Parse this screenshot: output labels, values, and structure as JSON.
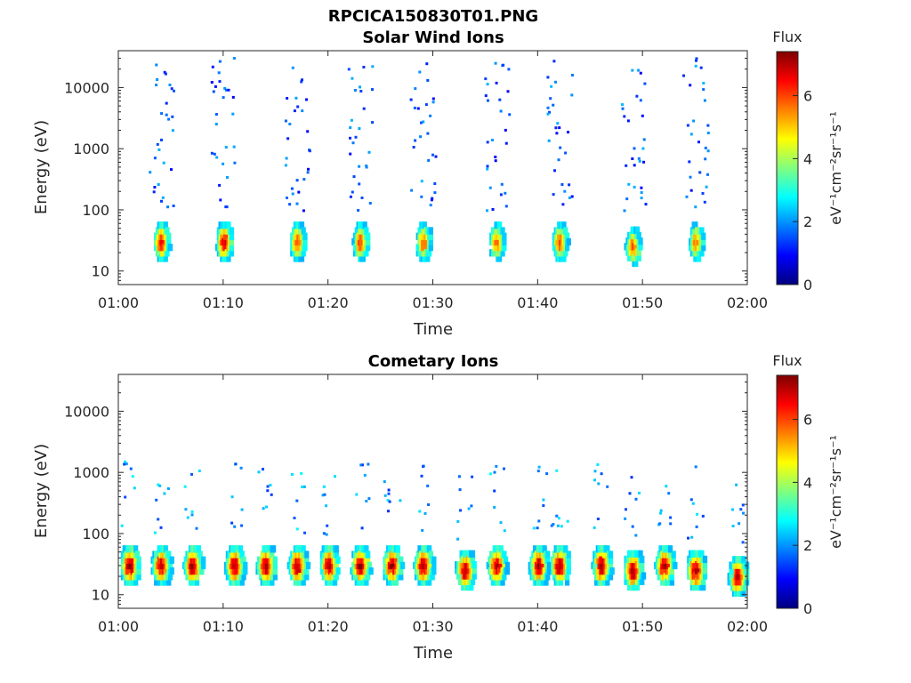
{
  "figure_title": "RPCICA150830T01.PNG",
  "colorbar": {
    "title": "Flux",
    "ticks": [
      "0",
      "2",
      "4",
      "6"
    ],
    "units_label": "eV⁻¹cm⁻²sr⁻¹s⁻¹",
    "range": [
      0,
      7.4
    ],
    "colormap": "jet"
  },
  "chart_data": [
    {
      "type": "heatmap",
      "title": "Solar Wind Ions",
      "xlabel": "Time",
      "ylabel": "Energy (eV)",
      "x_ticks": [
        "01:00",
        "01:10",
        "01:20",
        "01:30",
        "01:40",
        "01:50",
        "02:00"
      ],
      "y_ticks": [
        "10",
        "100",
        "1000",
        "10000"
      ],
      "xlim": [
        "01:00",
        "02:00"
      ],
      "ylim": [
        6,
        40000
      ],
      "y_scale": "log",
      "z_label": "Flux",
      "z_range": [
        0,
        7.4
      ],
      "main_bursts": [
        {
          "time": "01:04",
          "peak_energy_eV": 30,
          "peak_flux": 6.5
        },
        {
          "time": "01:10",
          "peak_energy_eV": 30,
          "peak_flux": 6.8
        },
        {
          "time": "01:17",
          "peak_energy_eV": 30,
          "peak_flux": 6.0
        },
        {
          "time": "01:23",
          "peak_energy_eV": 30,
          "peak_flux": 6.0
        },
        {
          "time": "01:29",
          "peak_energy_eV": 30,
          "peak_flux": 5.8
        },
        {
          "time": "01:36",
          "peak_energy_eV": 30,
          "peak_flux": 5.8
        },
        {
          "time": "01:42",
          "peak_energy_eV": 30,
          "peak_flux": 6.0
        },
        {
          "time": "01:49",
          "peak_energy_eV": 25,
          "peak_flux": 5.8
        },
        {
          "time": "01:55",
          "peak_energy_eV": 30,
          "peak_flux": 5.5
        }
      ]
    },
    {
      "type": "heatmap",
      "title": "Cometary Ions",
      "xlabel": "Time",
      "ylabel": "Energy (eV)",
      "x_ticks": [
        "01:00",
        "01:10",
        "01:20",
        "01:30",
        "01:40",
        "01:50",
        "02:00"
      ],
      "y_ticks": [
        "10",
        "100",
        "1000",
        "10000"
      ],
      "xlim": [
        "01:00",
        "02:00"
      ],
      "ylim": [
        6,
        40000
      ],
      "y_scale": "log",
      "z_label": "Flux",
      "z_range": [
        0,
        7.4
      ],
      "main_bursts": [
        {
          "time": "01:01",
          "peak_energy_eV": 30,
          "peak_flux": 7.2
        },
        {
          "time": "01:04",
          "peak_energy_eV": 30,
          "peak_flux": 7.0
        },
        {
          "time": "01:07",
          "peak_energy_eV": 30,
          "peak_flux": 7.2
        },
        {
          "time": "01:11",
          "peak_energy_eV": 30,
          "peak_flux": 7.2
        },
        {
          "time": "01:14",
          "peak_energy_eV": 30,
          "peak_flux": 7.2
        },
        {
          "time": "01:17",
          "peak_energy_eV": 30,
          "peak_flux": 7.2
        },
        {
          "time": "01:20",
          "peak_energy_eV": 30,
          "peak_flux": 7.2
        },
        {
          "time": "01:23",
          "peak_energy_eV": 30,
          "peak_flux": 7.2
        },
        {
          "time": "01:26",
          "peak_energy_eV": 30,
          "peak_flux": 7.2
        },
        {
          "time": "01:29",
          "peak_energy_eV": 30,
          "peak_flux": 7.2
        },
        {
          "time": "01:33",
          "peak_energy_eV": 25,
          "peak_flux": 7.2
        },
        {
          "time": "01:36",
          "peak_energy_eV": 30,
          "peak_flux": 7.0
        },
        {
          "time": "01:40",
          "peak_energy_eV": 30,
          "peak_flux": 7.2
        },
        {
          "time": "01:42",
          "peak_energy_eV": 30,
          "peak_flux": 7.2
        },
        {
          "time": "01:46",
          "peak_energy_eV": 30,
          "peak_flux": 7.2
        },
        {
          "time": "01:49",
          "peak_energy_eV": 25,
          "peak_flux": 7.2
        },
        {
          "time": "01:52",
          "peak_energy_eV": 30,
          "peak_flux": 7.2
        },
        {
          "time": "01:55",
          "peak_energy_eV": 25,
          "peak_flux": 7.2
        },
        {
          "time": "01:59",
          "peak_energy_eV": 20,
          "peak_flux": 7.0
        }
      ]
    }
  ]
}
